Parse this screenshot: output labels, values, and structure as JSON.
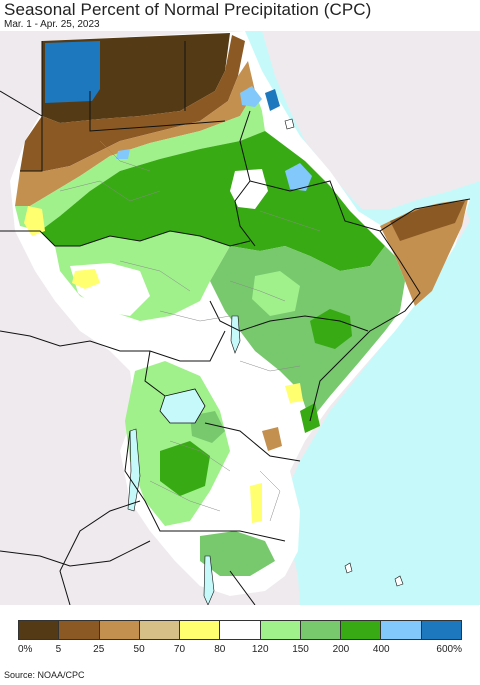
{
  "title": "Seasonal Percent of Normal Precipitation (CPC)",
  "subtitle": "Mar. 1 - Apr. 25, 2023",
  "source": "Source: NOAA/CPC",
  "legend": {
    "labels": [
      "0%",
      "5",
      "25",
      "50",
      "70",
      "80",
      "120",
      "150",
      "200",
      "400",
      "600%"
    ],
    "colors": [
      "#553a16",
      "#8b5a24",
      "#c49050",
      "#d6c088",
      "#ffff70",
      "#ffffff",
      "#a0f08c",
      "#78c86e",
      "#37aa14",
      "#82c8fa",
      "#1e78be"
    ]
  },
  "map_colors": {
    "ocean": "#c6fafa",
    "outside": "#eeeaee",
    "border": "#111111",
    "admin": "#8a8a8a"
  }
}
